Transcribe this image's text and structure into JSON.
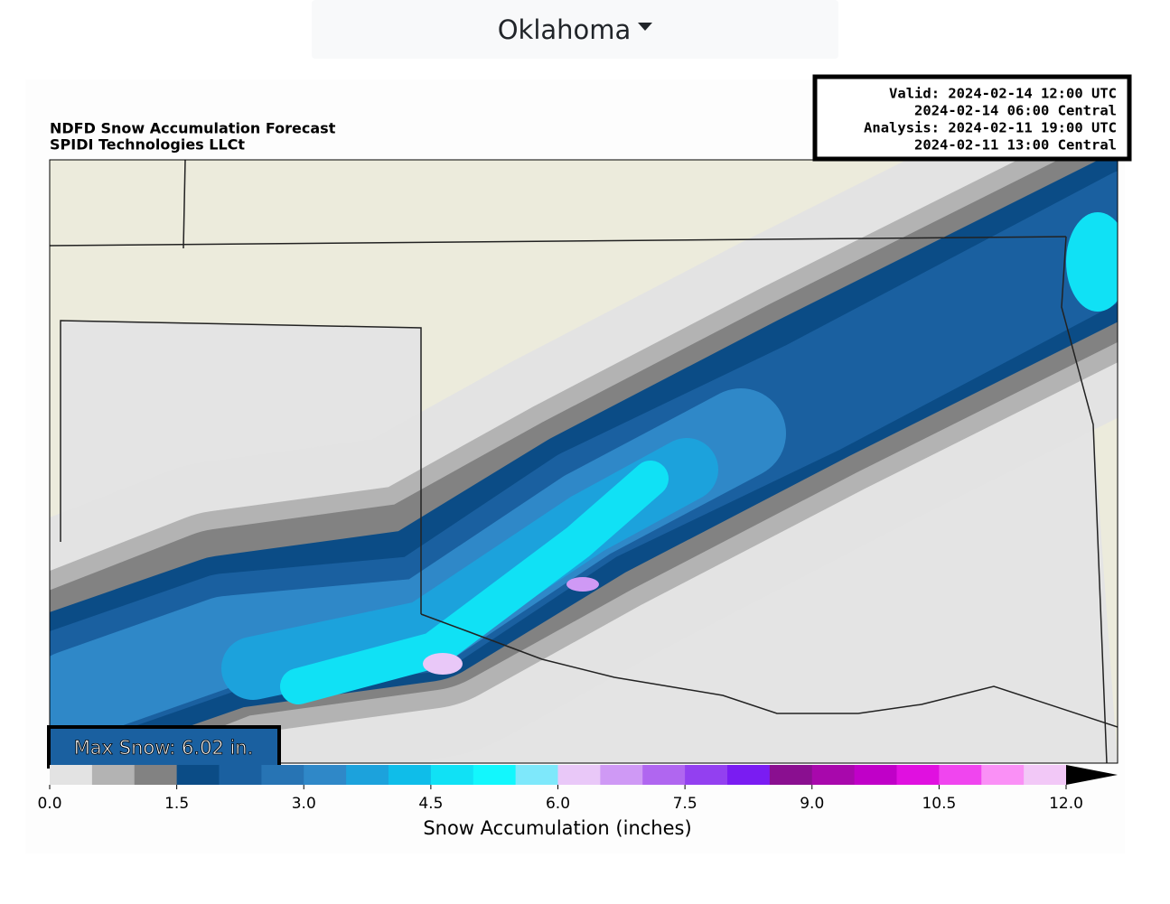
{
  "dropdown": {
    "label": "Oklahoma"
  },
  "map": {
    "title": [
      "NDFD Snow Accumulation Forecast",
      "SPIDI Technologies LLCt"
    ],
    "timestamps": [
      "Valid: 2024-02-14 12:00 UTC",
      "2024-02-14 06:00 Central",
      "Analysis: 2024-02-11 19:00 UTC",
      "2024-02-11 13:00 Central"
    ],
    "max_snow": "Max Snow: 6.02 in.",
    "colorbar": {
      "label": "Snow Accumulation (inches)",
      "range": [
        0,
        12
      ],
      "ticks": [
        {
          "value": 0,
          "label": "0.0"
        },
        {
          "value": 1.5,
          "label": "1.5"
        },
        {
          "value": 3,
          "label": "3.0"
        },
        {
          "value": 4.5,
          "label": "4.5"
        },
        {
          "value": 6,
          "label": "6.0"
        },
        {
          "value": 7.5,
          "label": "7.5"
        },
        {
          "value": 9,
          "label": "9.0"
        },
        {
          "value": 10.5,
          "label": "10.5"
        },
        {
          "value": 12,
          "label": "12.0"
        }
      ],
      "colors": [
        "#e3e3e3",
        "#b3b3b3",
        "#828282",
        "#0b4c86",
        "#1a60a0",
        "#2774b4",
        "#2f88c8",
        "#1ca2dc",
        "#0fbde9",
        "#10e1f5",
        "#12f7fd",
        "#7ee8fb",
        "#e9c8f8",
        "#cf99f5",
        "#b066f0",
        "#9340f0",
        "#7a1cf2",
        "#8a0f90",
        "#a808ac",
        "#c000c8",
        "#e010e0",
        "#f045ef",
        "#fa90f6",
        "#f2c8f7"
      ]
    }
  }
}
